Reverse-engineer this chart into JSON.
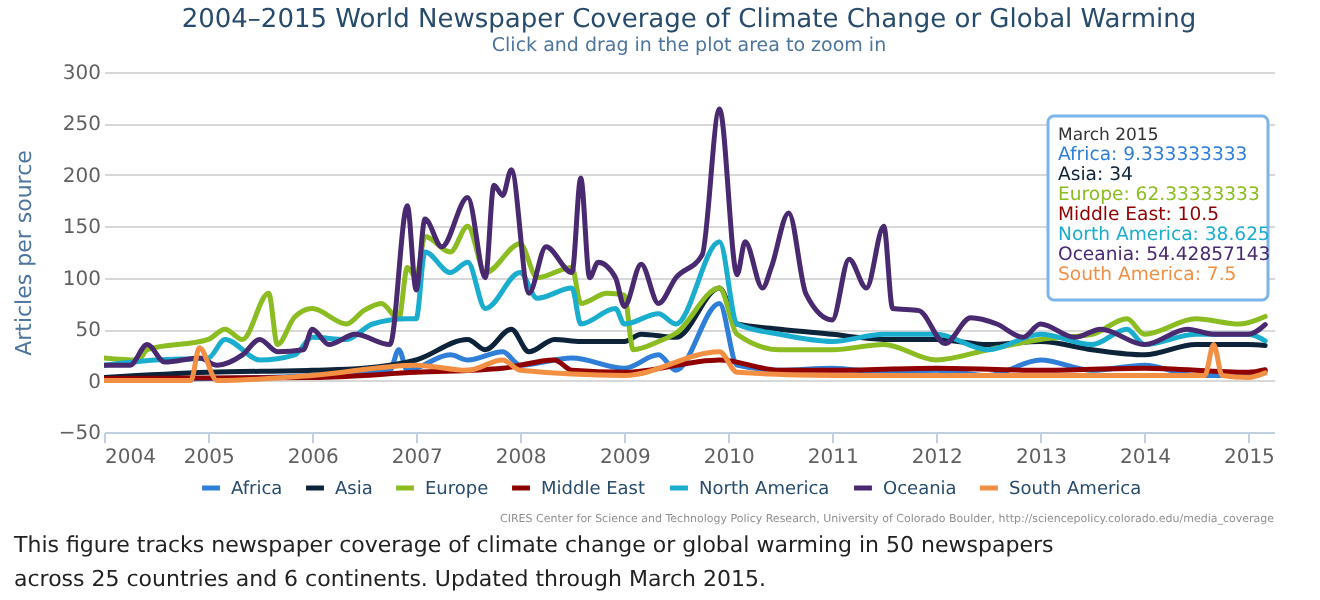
{
  "chart_data": {
    "type": "line",
    "title": "2004–2015 World Newspaper Coverage of Climate Change or Global Warming",
    "subtitle": "Click and drag in the plot area to zoom in",
    "ylabel": "Articles per source",
    "ylim": [
      -50,
      300
    ],
    "yticks": [
      -50,
      0,
      50,
      100,
      150,
      200,
      250,
      300
    ],
    "xlim": [
      "2004",
      "2015-04"
    ],
    "xticks": [
      "2004",
      "2005",
      "2006",
      "2007",
      "2008",
      "2009",
      "2010",
      "2011",
      "2012",
      "2013",
      "2014",
      "2015"
    ],
    "grid": "y",
    "legend": "bottom",
    "marker": "none",
    "line_style": "solid",
    "series": [
      {
        "name": "Africa",
        "color": "#2f7ed8",
        "x": [
          "2004-01",
          "2005-01",
          "2006-01",
          "2006-05",
          "2006-10",
          "2006-11",
          "2006-12",
          "2007-05",
          "2007-07",
          "2007-11",
          "2008-01",
          "2008-07",
          "2009-01",
          "2009-05",
          "2009-07",
          "2009-12",
          "2010-02",
          "2010-07",
          "2011-01",
          "2011-07",
          "2012-01",
          "2012-07",
          "2013-01",
          "2013-07",
          "2014-01",
          "2014-07",
          "2015-01",
          "2015-03"
        ],
        "values": [
          0,
          2,
          5,
          8,
          10,
          30,
          10,
          25,
          20,
          28,
          15,
          22,
          12,
          25,
          10,
          75,
          15,
          10,
          12,
          8,
          10,
          5,
          20,
          10,
          15,
          5,
          5,
          9.333333333
        ]
      },
      {
        "name": "Asia",
        "color": "#0d233a",
        "x": [
          "2004-01",
          "2005-01",
          "2006-01",
          "2006-07",
          "2007-01",
          "2007-07",
          "2007-09",
          "2007-12",
          "2008-02",
          "2008-05",
          "2008-08",
          "2009-01",
          "2009-03",
          "2009-07",
          "2009-12",
          "2010-02",
          "2010-07",
          "2011-01",
          "2011-07",
          "2012-01",
          "2012-07",
          "2013-01",
          "2013-07",
          "2014-01",
          "2014-07",
          "2015-01",
          "2015-03"
        ],
        "values": [
          3,
          8,
          10,
          12,
          20,
          40,
          30,
          50,
          28,
          40,
          38,
          38,
          45,
          42,
          90,
          55,
          50,
          45,
          40,
          40,
          35,
          38,
          30,
          25,
          35,
          35,
          34
        ]
      },
      {
        "name": "Europe",
        "color": "#8bbc21",
        "x": [
          "2004-01",
          "2004-05",
          "2004-06",
          "2005-01",
          "2005-03",
          "2005-05",
          "2005-08",
          "2005-09",
          "2005-11",
          "2006-01",
          "2006-05",
          "2006-07",
          "2006-09",
          "2006-11",
          "2006-12",
          "2007-01",
          "2007-02",
          "2007-05",
          "2007-07",
          "2007-09",
          "2008-01",
          "2008-03",
          "2008-07",
          "2008-08",
          "2008-11",
          "2009-01",
          "2009-02",
          "2009-05",
          "2009-07",
          "2009-12",
          "2010-02",
          "2010-07",
          "2011-01",
          "2011-07",
          "2012-01",
          "2012-07",
          "2013-01",
          "2013-07",
          "2013-11",
          "2014-01",
          "2014-07",
          "2014-12",
          "2015-03"
        ],
        "values": [
          22,
          20,
          30,
          40,
          50,
          40,
          85,
          35,
          62,
          70,
          55,
          68,
          75,
          60,
          110,
          100,
          140,
          125,
          150,
          105,
          133,
          100,
          110,
          75,
          85,
          83,
          30,
          38,
          46,
          90,
          45,
          30,
          30,
          35,
          20,
          30,
          40,
          45,
          60,
          45,
          60,
          55,
          62.33333333
        ]
      },
      {
        "name": "Middle East",
        "color": "#910000",
        "x": [
          "2004-01",
          "2006-01",
          "2007-01",
          "2007-11",
          "2008-05",
          "2008-07",
          "2009-01",
          "2009-12",
          "2010-07",
          "2011-01",
          "2012-01",
          "2013-01",
          "2014-01",
          "2015-01",
          "2015-03"
        ],
        "values": [
          2,
          3,
          8,
          12,
          20,
          10,
          8,
          20,
          10,
          10,
          12,
          10,
          12,
          8,
          10.5
        ]
      },
      {
        "name": "North America",
        "color": "#1aadce",
        "x": [
          "2004-01",
          "2004-07",
          "2005-01",
          "2005-03",
          "2005-07",
          "2005-11",
          "2006-01",
          "2006-05",
          "2006-08",
          "2006-12",
          "2007-01",
          "2007-02",
          "2007-05",
          "2007-07",
          "2007-09",
          "2008-01",
          "2008-03",
          "2008-07",
          "2008-08",
          "2008-12",
          "2009-01",
          "2009-05",
          "2009-07",
          "2009-12",
          "2010-02",
          "2010-07",
          "2011-01",
          "2011-07",
          "2012-01",
          "2012-07",
          "2013-01",
          "2013-07",
          "2013-11",
          "2014-01",
          "2014-07",
          "2015-01",
          "2015-03"
        ],
        "values": [
          15,
          20,
          22,
          40,
          20,
          25,
          42,
          40,
          55,
          60,
          60,
          125,
          105,
          115,
          70,
          105,
          80,
          90,
          55,
          70,
          55,
          65,
          55,
          135,
          55,
          45,
          38,
          45,
          45,
          30,
          45,
          35,
          50,
          35,
          45,
          45,
          38.625
        ]
      },
      {
        "name": "Oceania",
        "color": "#492970",
        "x": [
          "2004-01",
          "2004-04",
          "2004-06",
          "2004-08",
          "2004-12",
          "2005-02",
          "2005-05",
          "2005-07",
          "2005-09",
          "2005-12",
          "2006-01",
          "2006-03",
          "2006-06",
          "2006-10",
          "2006-12",
          "2007-01",
          "2007-02",
          "2007-04",
          "2007-07",
          "2007-09",
          "2007-10",
          "2007-11",
          "2007-12",
          "2008-02",
          "2008-04",
          "2008-07",
          "2008-08",
          "2008-09",
          "2008-10",
          "2008-12",
          "2009-01",
          "2009-03",
          "2009-05",
          "2009-07",
          "2009-10",
          "2009-12",
          "2010-02",
          "2010-03",
          "2010-05",
          "2010-06",
          "2010-08",
          "2010-10",
          "2011-01",
          "2011-03",
          "2011-05",
          "2011-07",
          "2011-08",
          "2011-11",
          "2012-02",
          "2012-05",
          "2012-08",
          "2012-11",
          "2013-01",
          "2013-05",
          "2013-08",
          "2014-01",
          "2014-06",
          "2014-09",
          "2015-01",
          "2015-03"
        ],
        "values": [
          15,
          15,
          35,
          18,
          22,
          15,
          25,
          40,
          28,
          30,
          50,
          35,
          45,
          35,
          170,
          88,
          157,
          130,
          178,
          100,
          190,
          180,
          205,
          85,
          130,
          105,
          197,
          100,
          115,
          100,
          72,
          113,
          75,
          100,
          122,
          264,
          103,
          135,
          90,
          110,
          163,
          84,
          59,
          118,
          90,
          150,
          70,
          68,
          36,
          61,
          55,
          42,
          55,
          42,
          50,
          35,
          50,
          45,
          45,
          54.42857143
        ]
      },
      {
        "name": "South America",
        "color": "#f28f43",
        "x": [
          "2004-01",
          "2004-11",
          "2004-12",
          "2005-02",
          "2006-01",
          "2007-01",
          "2007-07",
          "2007-11",
          "2008-01",
          "2009-01",
          "2009-12",
          "2010-02",
          "2011-01",
          "2012-01",
          "2013-01",
          "2014-01",
          "2014-08",
          "2014-09",
          "2014-10",
          "2015-01",
          "2015-03"
        ],
        "values": [
          0,
          0,
          32,
          0,
          5,
          15,
          10,
          20,
          10,
          5,
          28,
          8,
          5,
          5,
          5,
          5,
          5,
          35,
          5,
          3,
          7.5
        ]
      }
    ],
    "annotations": [
      "March 2015",
      "Africa: 9.333333333",
      "Asia: 34",
      "Europe: 62.33333333",
      "Middle East: 10.5",
      "North America: 38.625",
      "Oceania: 54.42857143",
      "South America: 7.5",
      "CIRES Center for Science and Technology Policy Research, University of Colorado Boulder, http://sciencepolicy.colorado.edu/media_coverage",
      "This figure tracks newspaper coverage of climate change or global warming in 50 newspapers across 25 countries and 6 continents. Updated through March 2015."
    ]
  }
}
